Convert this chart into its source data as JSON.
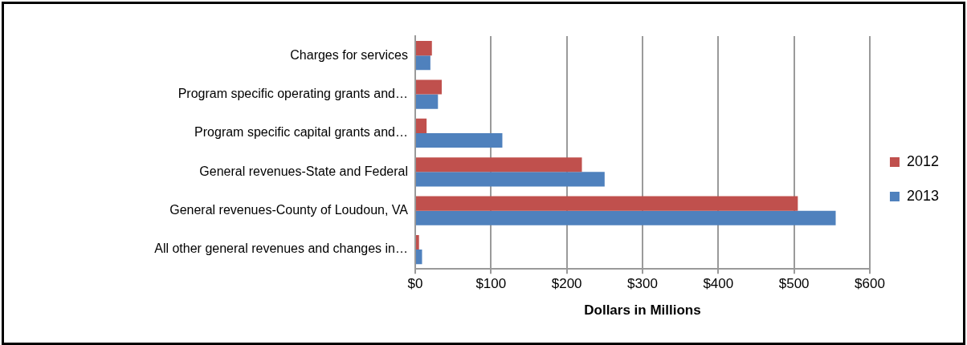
{
  "chart_data": {
    "type": "bar",
    "orientation": "horizontal",
    "xlabel": "Dollars in Millions",
    "categories": [
      "Charges for services",
      "Program specific operating grants and…",
      "Program specific capital grants and…",
      "General revenues-State and Federal",
      "General revenues-County of Loudoun, VA",
      "All other general revenues and changes in…"
    ],
    "series": [
      {
        "name": "2012",
        "color": "#c0504d",
        "values": [
          22,
          35,
          15,
          220,
          505,
          5
        ]
      },
      {
        "name": "2013",
        "color": "#4f81bd",
        "values": [
          20,
          30,
          115,
          250,
          555,
          9
        ]
      }
    ],
    "xlim": [
      0,
      600
    ],
    "xticks": [
      {
        "value": 0,
        "label": "$0"
      },
      {
        "value": 100,
        "label": "$100"
      },
      {
        "value": 200,
        "label": "$200"
      },
      {
        "value": 300,
        "label": "$300"
      },
      {
        "value": 400,
        "label": "$400"
      },
      {
        "value": 500,
        "label": "$500"
      },
      {
        "value": 600,
        "label": "$600"
      }
    ],
    "grid": "x",
    "legend": "right"
  }
}
